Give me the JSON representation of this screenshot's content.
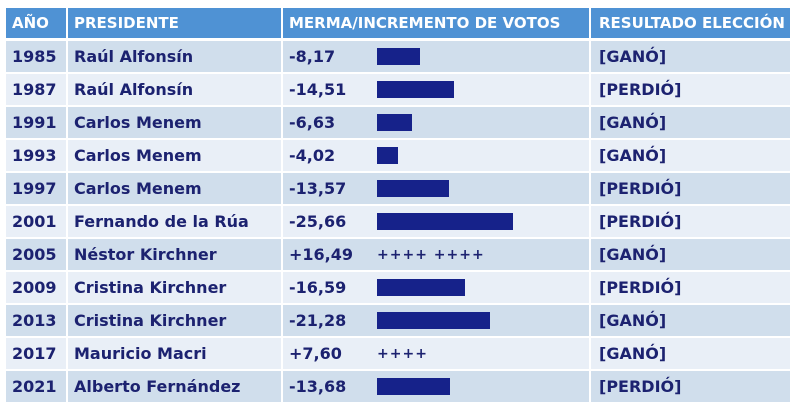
{
  "table": {
    "headers": [
      "AÑO",
      "PRESIDENTE",
      "MERMA/INCREMENTO DE VOTOS",
      "RESULTADO ELECCIÓN"
    ],
    "rows": [
      {
        "year": "1985",
        "president": "Raúl Alfonsín",
        "change": "-8,17",
        "indicator": "",
        "result": "[GANÓ]"
      },
      {
        "year": "1987",
        "president": "Raúl Alfonsín",
        "change": "-14,51",
        "indicator": "",
        "result": "[PERDIÓ]"
      },
      {
        "year": "1991",
        "president": "Carlos Menem",
        "change": "-6,63",
        "indicator": "",
        "result": "[GANÓ]"
      },
      {
        "year": "1993",
        "president": "Carlos Menem",
        "change": "-4,02",
        "indicator": "",
        "result": "[GANÓ]"
      },
      {
        "year": "1997",
        "president": "Carlos Menem",
        "change": "-13,57",
        "indicator": "",
        "result": "[PERDIÓ]"
      },
      {
        "year": "2001",
        "president": "Fernando de la Rúa",
        "change": "-25,66",
        "indicator": "",
        "result": "[PERDIÓ]"
      },
      {
        "year": "2005",
        "president": "Néstor Kirchner",
        "change": "+16,49",
        "indicator": "++++ ++++",
        "result": "[GANÓ]"
      },
      {
        "year": "2009",
        "president": "Cristina Kirchner",
        "change": "-16,59",
        "indicator": "",
        "result": "[PERDIÓ]"
      },
      {
        "year": "2013",
        "president": "Cristina Kirchner",
        "change": "-21,28",
        "indicator": "",
        "result": "[GANÓ]"
      },
      {
        "year": "2017",
        "president": "Mauricio Macri",
        "change": "+7,60",
        "indicator": "++++",
        "result": "[GANÓ]"
      },
      {
        "year": "2021",
        "president": "Alberto Fernández",
        "change": "-13,68",
        "indicator": "",
        "result": "[PERDIÓ]"
      }
    ]
  },
  "colors": {
    "header_bg": "#4f92d4",
    "header_text": "#ffffff",
    "row_dark": "#d0deec",
    "row_light": "#e9eff7",
    "text": "#1c2270",
    "bar": "#16228a"
  },
  "chart_data": {
    "type": "table",
    "title": "",
    "columns": [
      "AÑO",
      "PRESIDENTE",
      "MERMA/INCREMENTO DE VOTOS",
      "RESULTADO ELECCIÓN"
    ],
    "categories": [
      "1985",
      "1987",
      "1991",
      "1993",
      "1997",
      "2001",
      "2005",
      "2009",
      "2013",
      "2017",
      "2021"
    ],
    "series": [
      {
        "name": "MERMA/INCREMENTO DE VOTOS",
        "values": [
          -8.17,
          -14.51,
          -6.63,
          -4.02,
          -13.57,
          -25.66,
          16.49,
          -16.59,
          -21.28,
          7.6,
          -13.68
        ]
      }
    ],
    "presidents": [
      "Raúl Alfonsín",
      "Raúl Alfonsín",
      "Carlos Menem",
      "Carlos Menem",
      "Carlos Menem",
      "Fernando de la Rúa",
      "Néstor Kirchner",
      "Cristina Kirchner",
      "Cristina Kirchner",
      "Mauricio Macri",
      "Alberto Fernández"
    ],
    "results": [
      "[GANÓ]",
      "[PERDIÓ]",
      "[GANÓ]",
      "[GANÓ]",
      "[PERDIÓ]",
      "[PERDIÓ]",
      "[GANÓ]",
      "[PERDIÓ]",
      "[GANÓ]",
      "[GANÓ]",
      "[PERDIÓ]"
    ],
    "annotations": [
      "Negative values drawn as dark blue bars proportional to magnitude",
      "Positive values drawn as '+' marks (++++ ++++ for +16,49; ++++ for +7,60)"
    ]
  }
}
